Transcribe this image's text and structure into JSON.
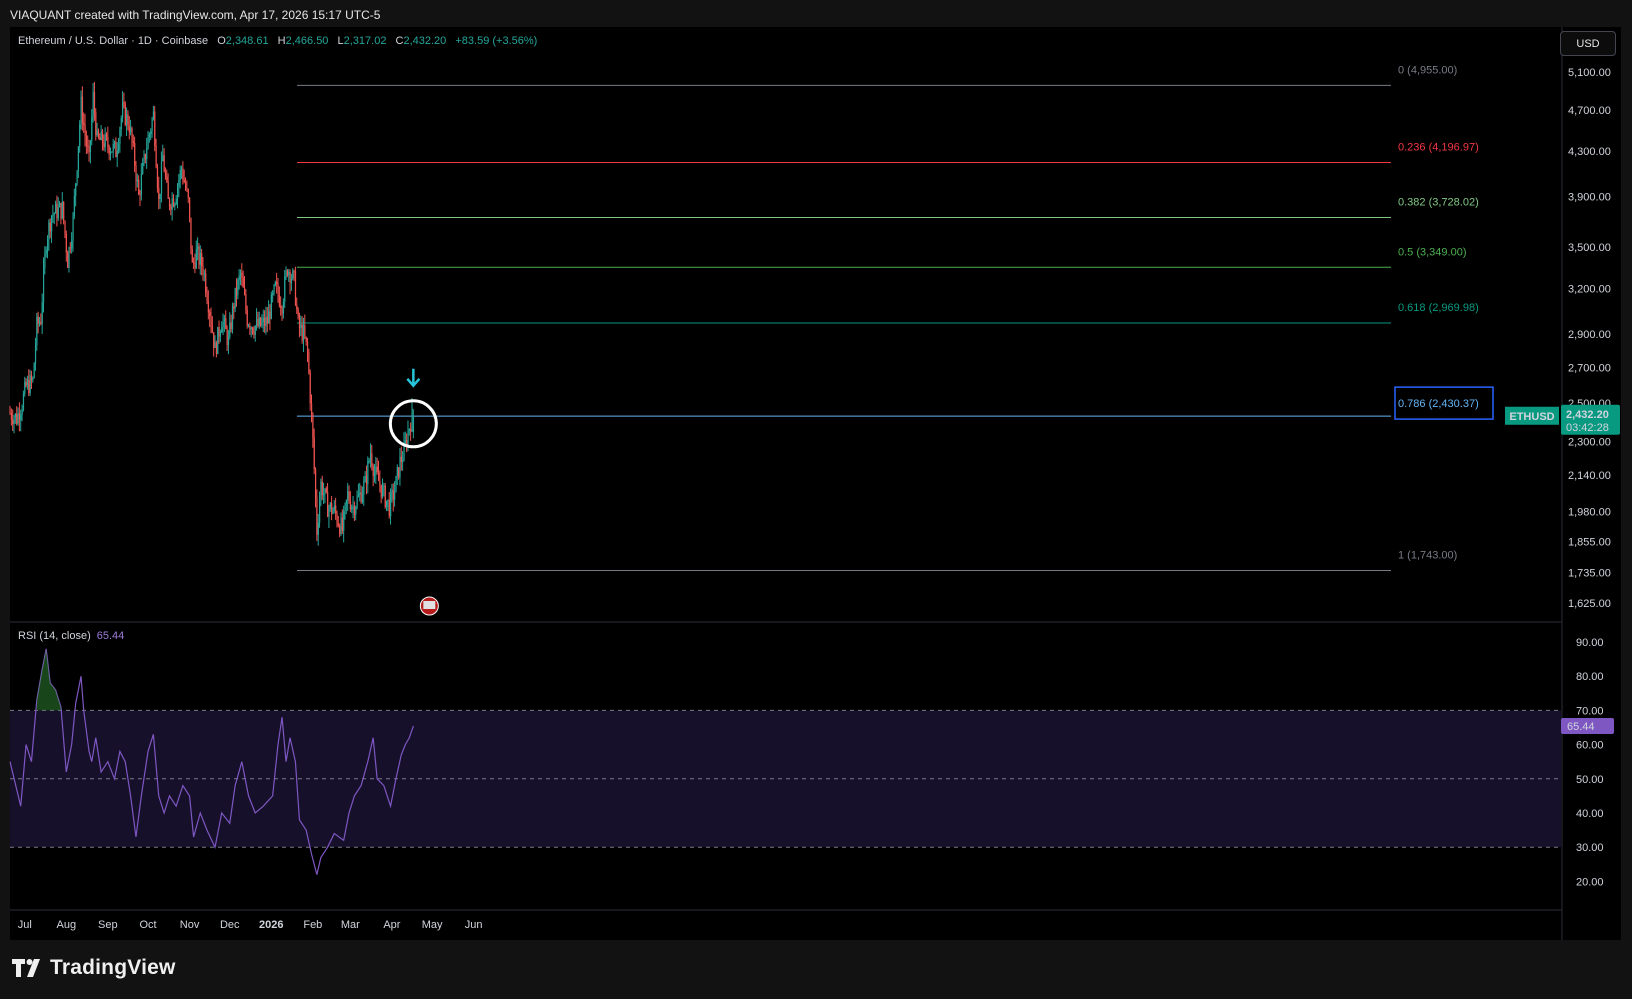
{
  "header": {
    "caption": "VIAQUANT created with TradingView.com, Apr 17, 2026 15:17 UTC-5"
  },
  "legend": {
    "symbol": "Ethereum / U.S. Dollar · 1D · Coinbase",
    "open_label": "O",
    "open": "2,348.61",
    "high_label": "H",
    "high": "2,466.50",
    "low_label": "L",
    "low": "2,317.02",
    "close_label": "C",
    "close": "2,432.20",
    "change": "+83.59 (+3.56%)"
  },
  "currency_button": "USD",
  "price_tag": {
    "symbol": "ETHUSD",
    "price": "2,432.20",
    "countdown": "03:42:28"
  },
  "rsi": {
    "label": "RSI (14, close)",
    "value": "65.44"
  },
  "footer": {
    "brand": "TradingView"
  },
  "colors": {
    "up": "#26a69a",
    "down": "#ef5350",
    "rsi_line": "#7e57c2",
    "highlight_circle": "#ffffff",
    "arrow": "#26c6da"
  },
  "annotations": {
    "circle": "around latest candle",
    "arrow": "down-arrow above latest candle"
  },
  "chart_data": {
    "type": "candlestick",
    "symbol": "ETHUSD",
    "timeframe": "1D",
    "price_axis": {
      "ticks": [
        "5,100.00",
        "4,700.00",
        "4,300.00",
        "3,900.00",
        "3,500.00",
        "3,200.00",
        "2,900.00",
        "2,700.00",
        "2,500.00",
        "2,300.00",
        "2,140.00",
        "1,980.00",
        "1,855.00",
        "1,735.00",
        "1,625.00"
      ],
      "scale": "log"
    },
    "time_axis": {
      "ticks": [
        "Jul",
        "Aug",
        "Sep",
        "Oct",
        "Nov",
        "Dec",
        "2026",
        "Feb",
        "Mar",
        "Apr",
        "May",
        "Jun"
      ]
    },
    "fib_levels": [
      {
        "ratio": "0",
        "price": 4955.0,
        "label": "0 (4,955.00)",
        "color": "#787b86"
      },
      {
        "ratio": "0.236",
        "price": 4196.97,
        "label": "0.236 (4,196.97)",
        "color": "#f23645"
      },
      {
        "ratio": "0.382",
        "price": 3728.02,
        "label": "0.382 (3,728.02)",
        "color": "#81c784"
      },
      {
        "ratio": "0.5",
        "price": 3349.0,
        "label": "0.5 (3,349.00)",
        "color": "#4caf50"
      },
      {
        "ratio": "0.618",
        "price": 2969.98,
        "label": "0.618 (2,969.98)",
        "color": "#089981"
      },
      {
        "ratio": "0.786",
        "price": 2430.37,
        "label": "0.786 (2,430.37)",
        "color": "#64b5f6"
      },
      {
        "ratio": "1",
        "price": 1743.0,
        "label": "1 (1,743.00)",
        "color": "#787b86"
      }
    ],
    "close_path": [
      [
        "2025-06-20",
        2450
      ],
      [
        "2025-06-26",
        2420
      ],
      [
        "2025-06-30",
        2500
      ],
      [
        "2025-07-03",
        2590
      ],
      [
        "2025-07-08",
        2620
      ],
      [
        "2025-07-11",
        2950
      ],
      [
        "2025-07-14",
        3000
      ],
      [
        "2025-07-18",
        3550
      ],
      [
        "2025-07-22",
        3750
      ],
      [
        "2025-07-26",
        3780
      ],
      [
        "2025-07-30",
        3800
      ],
      [
        "2025-08-03",
        3400
      ],
      [
        "2025-08-07",
        3700
      ],
      [
        "2025-08-10",
        4200
      ],
      [
        "2025-08-13",
        4750
      ],
      [
        "2025-08-16",
        4450
      ],
      [
        "2025-08-19",
        4200
      ],
      [
        "2025-08-22",
        4830
      ],
      [
        "2025-08-25",
        4400
      ],
      [
        "2025-08-29",
        4400
      ],
      [
        "2025-09-03",
        4350
      ],
      [
        "2025-09-08",
        4300
      ],
      [
        "2025-09-13",
        4700
      ],
      [
        "2025-09-18",
        4550
      ],
      [
        "2025-09-22",
        4200
      ],
      [
        "2025-09-25",
        3900
      ],
      [
        "2025-10-01",
        4350
      ],
      [
        "2025-10-06",
        4650
      ],
      [
        "2025-10-10",
        3850
      ],
      [
        "2025-10-13",
        4250
      ],
      [
        "2025-10-17",
        3850
      ],
      [
        "2025-10-22",
        3900
      ],
      [
        "2025-10-27",
        4150
      ],
      [
        "2025-11-01",
        3850
      ],
      [
        "2025-11-04",
        3350
      ],
      [
        "2025-11-07",
        3450
      ],
      [
        "2025-11-12",
        3350
      ],
      [
        "2025-11-17",
        3050
      ],
      [
        "2025-11-21",
        2800
      ],
      [
        "2025-11-26",
        3000
      ],
      [
        "2025-12-01",
        2850
      ],
      [
        "2025-12-05",
        3100
      ],
      [
        "2025-12-10",
        3300
      ],
      [
        "2025-12-15",
        3000
      ],
      [
        "2025-12-19",
        2950
      ],
      [
        "2025-12-24",
        2950
      ],
      [
        "2025-12-30",
        2980
      ],
      [
        "2026-01-05",
        3200
      ],
      [
        "2026-01-10",
        3100
      ],
      [
        "2026-01-14",
        3350
      ],
      [
        "2026-01-19",
        3250
      ],
      [
        "2026-01-22",
        2950
      ],
      [
        "2026-01-26",
        2900
      ],
      [
        "2026-01-29",
        2780
      ],
      [
        "2026-02-02",
        2300
      ],
      [
        "2026-02-05",
        1900
      ],
      [
        "2026-02-08",
        2100
      ],
      [
        "2026-02-13",
        2000
      ],
      [
        "2026-02-18",
        1980
      ],
      [
        "2026-02-24",
        1900
      ],
      [
        "2026-02-28",
        2050
      ],
      [
        "2026-03-04",
        2000
      ],
      [
        "2026-03-09",
        2050
      ],
      [
        "2026-03-13",
        2100
      ],
      [
        "2026-03-17",
        2250
      ],
      [
        "2026-03-20",
        2150
      ],
      [
        "2026-03-24",
        2100
      ],
      [
        "2026-03-27",
        2050
      ],
      [
        "2026-03-31",
        2000
      ],
      [
        "2026-04-04",
        2070
      ],
      [
        "2026-04-08",
        2200
      ],
      [
        "2026-04-11",
        2250
      ],
      [
        "2026-04-14",
        2350
      ],
      [
        "2026-04-17",
        2432.2
      ]
    ],
    "rsi": {
      "ticks": [
        "90.00",
        "80.00",
        "70.00",
        "60.00",
        "50.00",
        "40.00",
        "30.00",
        "20.00"
      ],
      "bands": [
        70,
        50,
        30
      ],
      "series": [
        [
          "2025-06-20",
          55
        ],
        [
          "2025-06-28",
          42
        ],
        [
          "2025-07-02",
          60
        ],
        [
          "2025-07-06",
          55
        ],
        [
          "2025-07-10",
          73
        ],
        [
          "2025-07-14",
          82
        ],
        [
          "2025-07-17",
          88
        ],
        [
          "2025-07-20",
          78
        ],
        [
          "2025-07-24",
          76
        ],
        [
          "2025-07-28",
          71
        ],
        [
          "2025-08-01",
          52
        ],
        [
          "2025-08-05",
          60
        ],
        [
          "2025-08-08",
          72
        ],
        [
          "2025-08-12",
          80
        ],
        [
          "2025-08-14",
          70
        ],
        [
          "2025-08-18",
          58
        ],
        [
          "2025-08-20",
          55
        ],
        [
          "2025-08-23",
          62
        ],
        [
          "2025-08-27",
          52
        ],
        [
          "2025-09-01",
          55
        ],
        [
          "2025-09-06",
          50
        ],
        [
          "2025-09-10",
          58
        ],
        [
          "2025-09-14",
          55
        ],
        [
          "2025-09-18",
          45
        ],
        [
          "2025-09-22",
          33
        ],
        [
          "2025-09-26",
          45
        ],
        [
          "2025-10-01",
          58
        ],
        [
          "2025-10-05",
          63
        ],
        [
          "2025-10-09",
          45
        ],
        [
          "2025-10-13",
          40
        ],
        [
          "2025-10-17",
          45
        ],
        [
          "2025-10-22",
          42
        ],
        [
          "2025-10-27",
          48
        ],
        [
          "2025-11-01",
          45
        ],
        [
          "2025-11-04",
          33
        ],
        [
          "2025-11-09",
          40
        ],
        [
          "2025-11-14",
          35
        ],
        [
          "2025-11-20",
          30
        ],
        [
          "2025-11-25",
          40
        ],
        [
          "2025-12-01",
          37
        ],
        [
          "2025-12-05",
          48
        ],
        [
          "2025-12-10",
          55
        ],
        [
          "2025-12-15",
          45
        ],
        [
          "2025-12-20",
          40
        ],
        [
          "2025-12-26",
          42
        ],
        [
          "2026-01-02",
          45
        ],
        [
          "2026-01-06",
          60
        ],
        [
          "2026-01-09",
          68
        ],
        [
          "2026-01-12",
          55
        ],
        [
          "2026-01-15",
          62
        ],
        [
          "2026-01-19",
          55
        ],
        [
          "2026-01-22",
          38
        ],
        [
          "2026-01-27",
          35
        ],
        [
          "2026-01-31",
          28
        ],
        [
          "2026-02-04",
          22
        ],
        [
          "2026-02-07",
          27
        ],
        [
          "2026-02-12",
          30
        ],
        [
          "2026-02-17",
          34
        ],
        [
          "2026-02-24",
          32
        ],
        [
          "2026-02-28",
          40
        ],
        [
          "2026-03-04",
          45
        ],
        [
          "2026-03-09",
          48
        ],
        [
          "2026-03-14",
          55
        ],
        [
          "2026-03-18",
          62
        ],
        [
          "2026-03-21",
          50
        ],
        [
          "2026-03-26",
          48
        ],
        [
          "2026-03-31",
          42
        ],
        [
          "2026-04-04",
          50
        ],
        [
          "2026-04-08",
          57
        ],
        [
          "2026-04-11",
          60
        ],
        [
          "2026-04-14",
          62
        ],
        [
          "2026-04-17",
          65.44
        ]
      ]
    }
  }
}
